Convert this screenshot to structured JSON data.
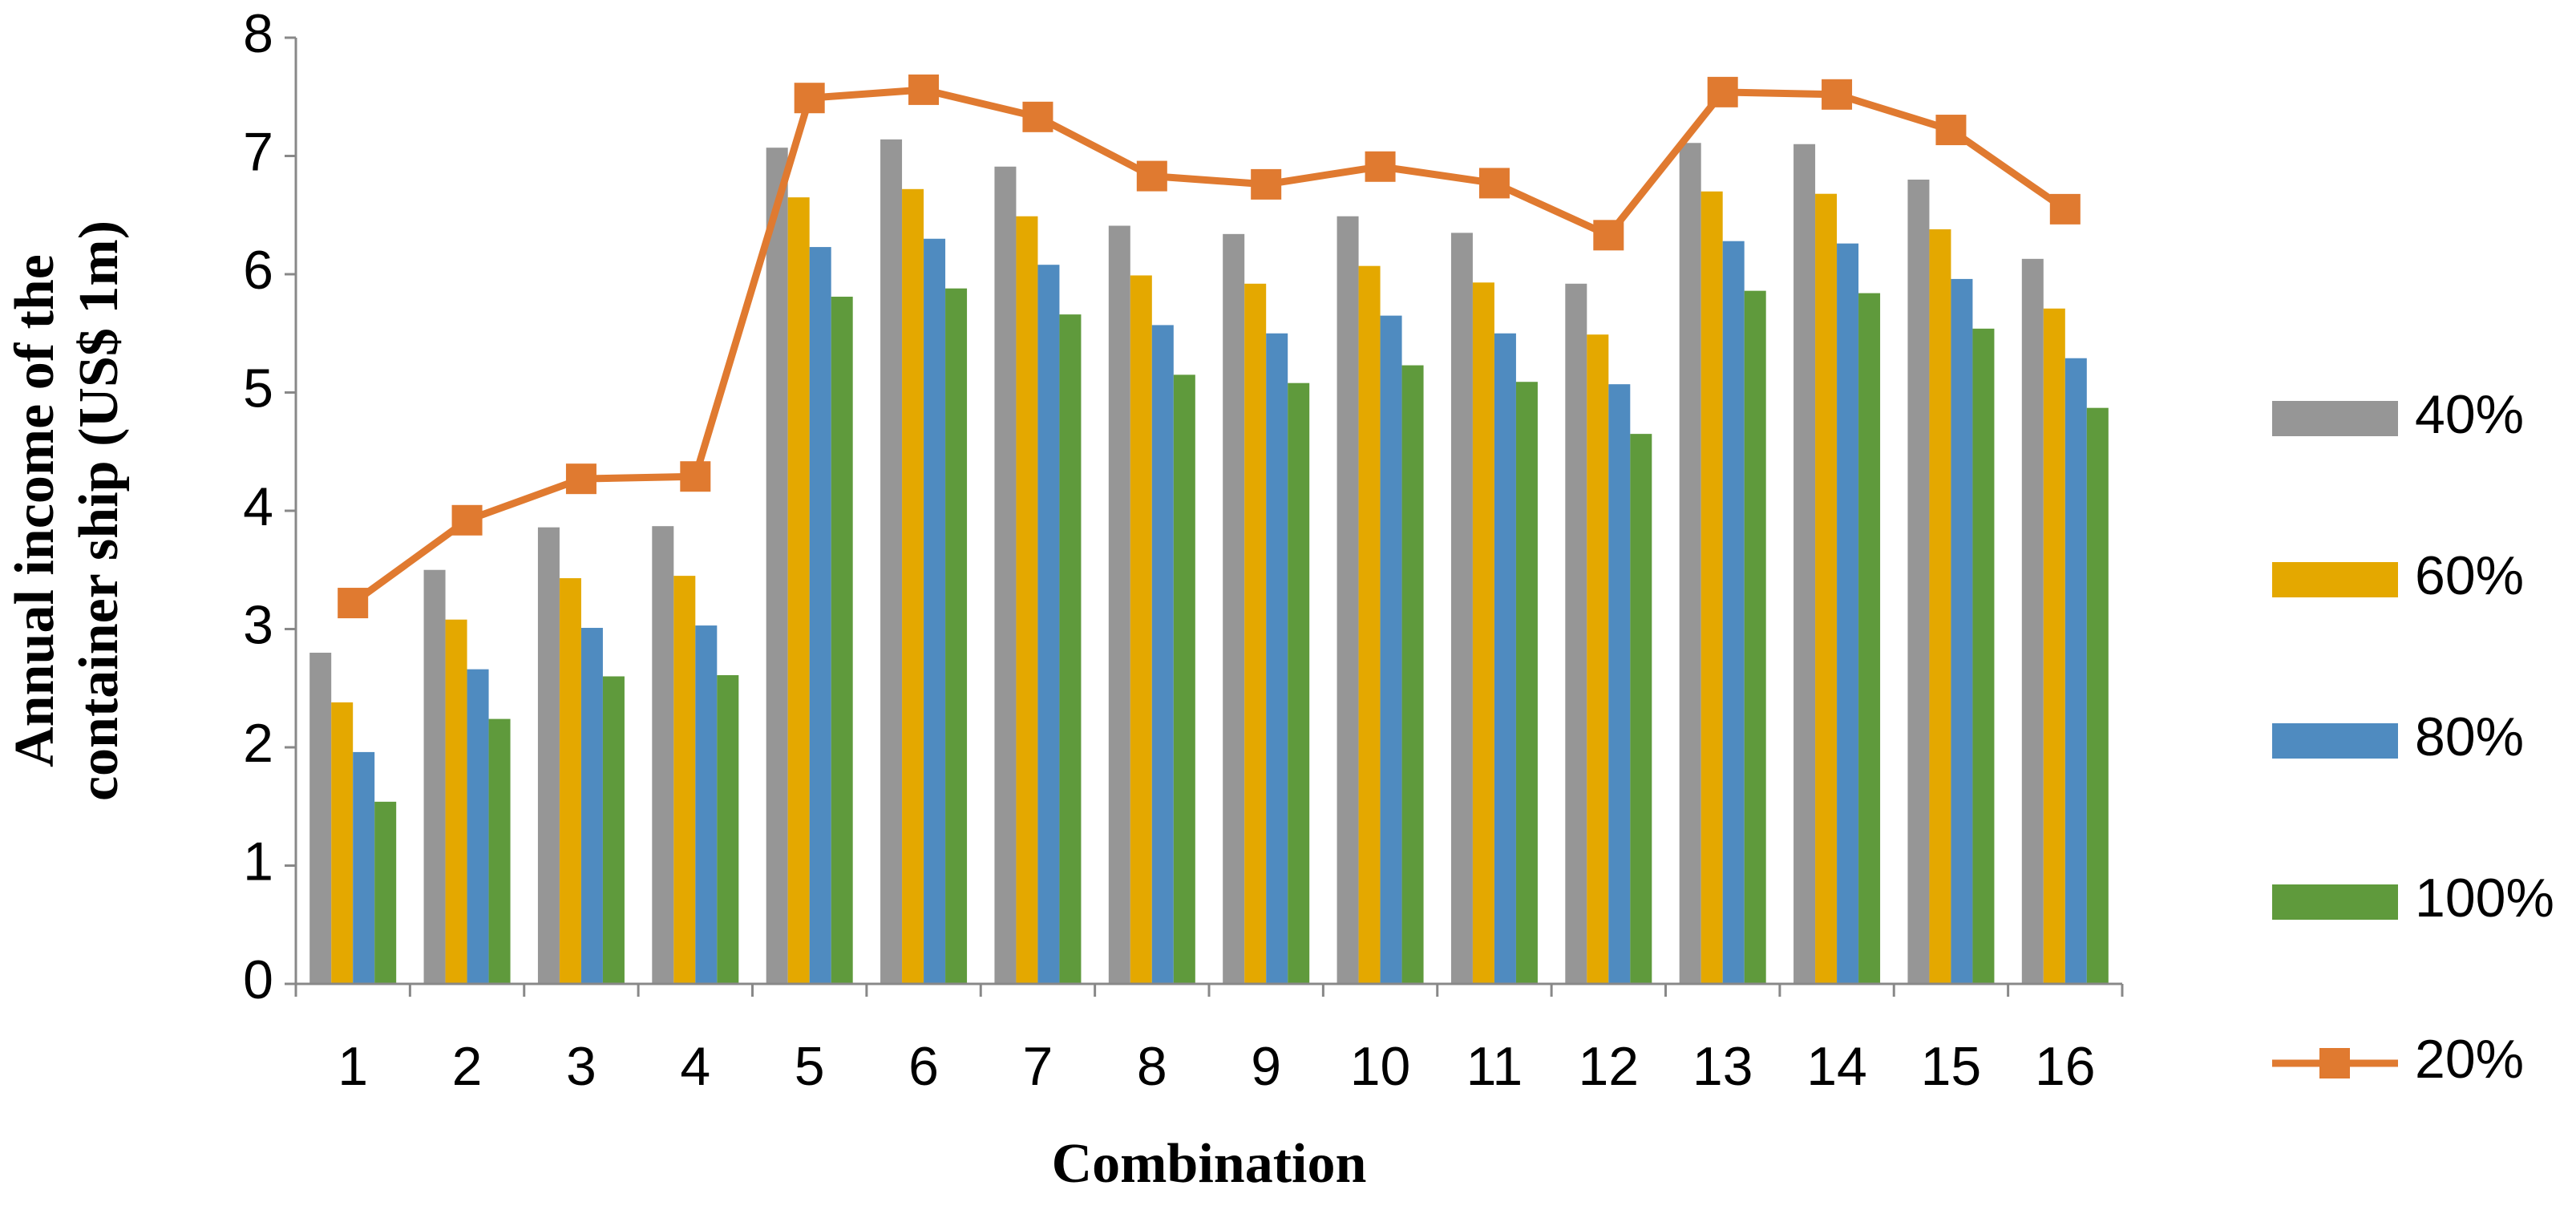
{
  "chart_data": {
    "type": "bar",
    "x_label": "Combination",
    "y_label": [
      "Annual income of the",
      "container ship (US$ 1m)"
    ],
    "categories": [
      "1",
      "2",
      "3",
      "4",
      "5",
      "6",
      "7",
      "8",
      "9",
      "10",
      "11",
      "12",
      "13",
      "14",
      "15",
      "16"
    ],
    "series": [
      {
        "name": "40%",
        "color": "#969696",
        "type": "bar",
        "values": [
          2.8,
          3.5,
          3.86,
          3.87,
          7.07,
          7.14,
          6.91,
          6.41,
          6.34,
          6.49,
          6.35,
          5.92,
          7.11,
          7.1,
          6.8,
          6.13
        ]
      },
      {
        "name": "60%",
        "color": "#e4a800",
        "type": "bar",
        "values": [
          2.38,
          3.08,
          3.43,
          3.45,
          6.65,
          6.72,
          6.49,
          5.99,
          5.92,
          6.07,
          5.93,
          5.49,
          6.7,
          6.68,
          6.38,
          5.71
        ]
      },
      {
        "name": "80%",
        "color": "#4f8bc0",
        "type": "bar",
        "values": [
          1.96,
          2.66,
          3.01,
          3.03,
          6.23,
          6.3,
          6.08,
          5.57,
          5.5,
          5.65,
          5.5,
          5.07,
          6.28,
          6.26,
          5.96,
          5.29
        ]
      },
      {
        "name": "100%",
        "color": "#5f9a3c",
        "type": "bar",
        "values": [
          1.54,
          2.24,
          2.6,
          2.61,
          5.81,
          5.88,
          5.66,
          5.15,
          5.08,
          5.23,
          5.09,
          4.65,
          5.86,
          5.84,
          5.54,
          4.87
        ]
      },
      {
        "name": "20%",
        "color": "#e07a30",
        "type": "line",
        "values": [
          3.22,
          3.92,
          4.27,
          4.29,
          7.49,
          7.56,
          7.33,
          6.83,
          6.76,
          6.91,
          6.77,
          6.33,
          7.54,
          7.52,
          7.22,
          6.55
        ]
      }
    ],
    "ylim": [
      0,
      8
    ],
    "yticks": [
      0,
      1,
      2,
      3,
      4,
      5,
      6,
      7,
      8
    ],
    "grid": false,
    "legend": "right"
  }
}
